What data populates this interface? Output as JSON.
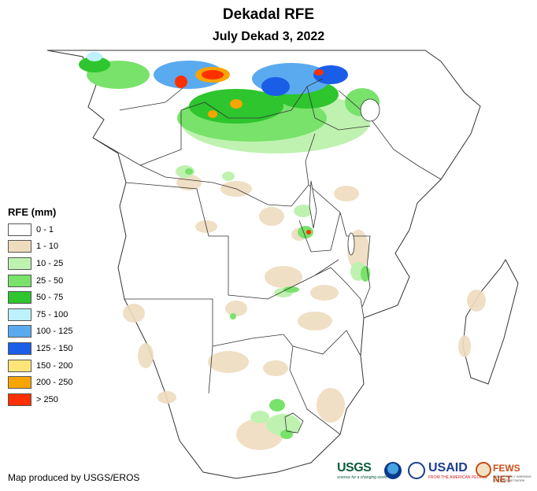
{
  "title": "Dekadal RFE",
  "subtitle": "July Dekad 3, 2022",
  "legend": {
    "title": "RFE (mm)",
    "classes": [
      {
        "label": "0 - 1",
        "color": "#ffffff"
      },
      {
        "label": "1 - 10",
        "color": "#eedcbe"
      },
      {
        "label": "10 - 25",
        "color": "#bff2b0"
      },
      {
        "label": "25 - 50",
        "color": "#78e26a"
      },
      {
        "label": "50 - 75",
        "color": "#2ec52e"
      },
      {
        "label": "75 - 100",
        "color": "#bdf2fa"
      },
      {
        "label": "100 - 125",
        "color": "#5aaaf0"
      },
      {
        "label": "125 - 150",
        "color": "#1a5ee8"
      },
      {
        "label": "150 - 200",
        "color": "#fde57a"
      },
      {
        "label": "200 - 250",
        "color": "#f7a500"
      },
      {
        "label": "> 250",
        "color": "#ff3000"
      }
    ]
  },
  "credit": "Map produced by USGS/EROS",
  "logos": {
    "usgs": "USGS",
    "usgs_tagline": "science for a changing world",
    "noaa": "noaa-seal-icon",
    "usaid": "USAID",
    "usaid_tagline": "FROM THE AMERICAN PEOPLE",
    "fews": "FEWS NET",
    "fews_tagline": "FAMINE EARLY WARNING SYSTEMS NETWORK"
  }
}
